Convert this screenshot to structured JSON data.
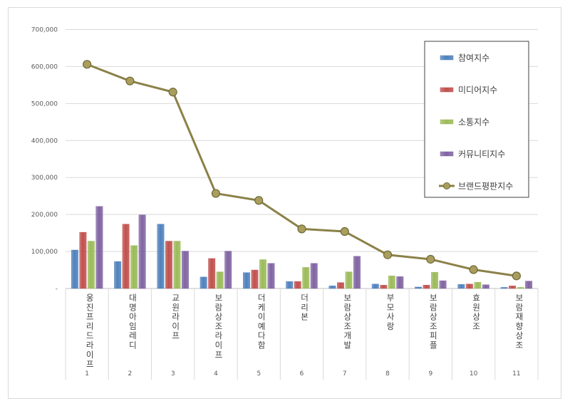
{
  "chart_data": {
    "type": "bar",
    "y_axis": {
      "ylim": [
        0,
        700000
      ],
      "ticks": [
        {
          "value": 0,
          "label": "-"
        },
        {
          "value": 100000,
          "label": "100,000"
        },
        {
          "value": 200000,
          "label": "200,000"
        },
        {
          "value": 300000,
          "label": "300,000"
        },
        {
          "value": 400000,
          "label": "400,000"
        },
        {
          "value": 500000,
          "label": "500,000"
        },
        {
          "value": 600000,
          "label": "600,000"
        },
        {
          "value": 700000,
          "label": "700,000"
        }
      ],
      "grid": true
    },
    "categories": [
      {
        "rank": "1",
        "name": "웅진프리드라이프"
      },
      {
        "rank": "2",
        "name": "대명아임레디"
      },
      {
        "rank": "3",
        "name": "교원라이프"
      },
      {
        "rank": "4",
        "name": "보람상조라이프"
      },
      {
        "rank": "5",
        "name": "더케이예다함"
      },
      {
        "rank": "6",
        "name": "더리본"
      },
      {
        "rank": "7",
        "name": "보람상조개발"
      },
      {
        "rank": "8",
        "name": "부모사랑"
      },
      {
        "rank": "9",
        "name": "보람상조피플"
      },
      {
        "rank": "10",
        "name": "효원상조"
      },
      {
        "rank": "11",
        "name": "보람재향상조"
      }
    ],
    "series": [
      {
        "name": "참여지수",
        "kind": "bar",
        "color": "#4f81bd",
        "values": [
          104000,
          73000,
          174000,
          31000,
          43000,
          19000,
          7000,
          12000,
          4000,
          11000,
          3000
        ]
      },
      {
        "name": "미디어지수",
        "kind": "bar",
        "color": "#c0504d",
        "values": [
          152000,
          174000,
          128000,
          81000,
          50000,
          19000,
          16000,
          9000,
          9000,
          12000,
          7000
        ]
      },
      {
        "name": "소통지수",
        "kind": "bar",
        "color": "#9bbb59",
        "values": [
          128000,
          116000,
          128000,
          45000,
          78000,
          57000,
          45000,
          34000,
          44000,
          17000,
          3000
        ]
      },
      {
        "name": "커뮤니티지수",
        "kind": "bar",
        "color": "#8064a2",
        "values": [
          222000,
          199000,
          101000,
          101000,
          68000,
          68000,
          87000,
          32000,
          21000,
          10000,
          20000
        ]
      },
      {
        "name": "브랜드평판지수",
        "kind": "line",
        "color": "#8b8148",
        "values": [
          606000,
          561000,
          531000,
          257000,
          238000,
          161000,
          154000,
          91000,
          79000,
          51000,
          34000
        ]
      }
    ],
    "legend": {
      "position": "top-right"
    }
  }
}
